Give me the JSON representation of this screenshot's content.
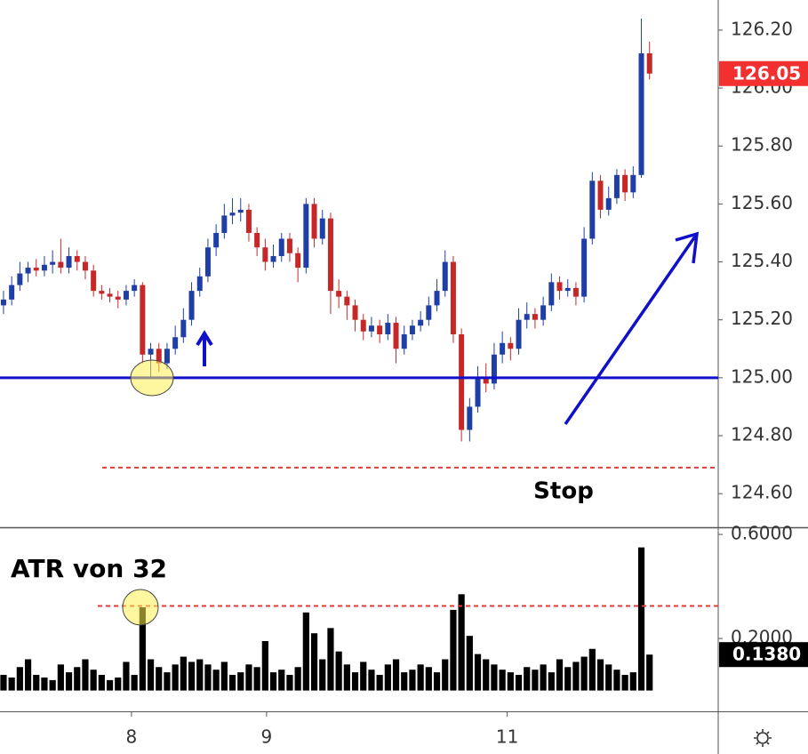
{
  "chart_data": [
    {
      "type": "candlestick",
      "up_color": "#1f3fa6",
      "down_color": "#c62828",
      "xlim": [
        -0.43,
        87.4
      ],
      "ylim": [
        124.487,
        126.304
      ],
      "yticks": [
        {
          "value": 124.6,
          "label": "124.60"
        },
        {
          "value": 124.8,
          "label": "124.80"
        },
        {
          "value": 125.0,
          "label": "125.00"
        },
        {
          "value": 125.2,
          "label": "125.20"
        },
        {
          "value": 125.4,
          "label": "125.40"
        },
        {
          "value": 125.6,
          "label": "125.60"
        },
        {
          "value": 125.8,
          "label": "125.80"
        },
        {
          "value": 126.0,
          "label": "126.00"
        },
        {
          "value": 126.2,
          "label": "126.20"
        }
      ],
      "ohlc": [
        [
          125.25,
          125.3,
          125.22,
          125.27
        ],
        [
          125.27,
          125.35,
          125.25,
          125.32
        ],
        [
          125.32,
          125.4,
          125.3,
          125.36
        ],
        [
          125.36,
          125.4,
          125.33,
          125.38
        ],
        [
          125.38,
          125.41,
          125.35,
          125.37
        ],
        [
          125.37,
          125.42,
          125.35,
          125.39
        ],
        [
          125.39,
          125.44,
          125.36,
          125.4
        ],
        [
          125.4,
          125.48,
          125.36,
          125.38
        ],
        [
          125.38,
          125.45,
          125.36,
          125.42
        ],
        [
          125.42,
          125.44,
          125.37,
          125.4
        ],
        [
          125.4,
          125.42,
          125.34,
          125.37
        ],
        [
          125.37,
          125.39,
          125.28,
          125.3
        ],
        [
          125.3,
          125.32,
          125.27,
          125.29
        ],
        [
          125.29,
          125.31,
          125.26,
          125.28
        ],
        [
          125.28,
          125.3,
          125.24,
          125.27
        ],
        [
          125.27,
          125.32,
          125.25,
          125.3
        ],
        [
          125.3,
          125.34,
          125.28,
          125.32
        ],
        [
          125.32,
          125.33,
          125.05,
          125.08
        ],
        [
          125.08,
          125.12,
          125.0,
          125.1
        ],
        [
          125.1,
          125.12,
          125.02,
          125.05
        ],
        [
          125.05,
          125.12,
          125.03,
          125.1
        ],
        [
          125.1,
          125.18,
          125.08,
          125.14
        ],
        [
          125.14,
          125.24,
          125.12,
          125.2
        ],
        [
          125.2,
          125.33,
          125.18,
          125.3
        ],
        [
          125.3,
          125.38,
          125.28,
          125.35
        ],
        [
          125.35,
          125.48,
          125.33,
          125.45
        ],
        [
          125.45,
          125.53,
          125.42,
          125.5
        ],
        [
          125.5,
          125.6,
          125.48,
          125.56
        ],
        [
          125.56,
          125.62,
          125.53,
          125.57
        ],
        [
          125.57,
          125.62,
          125.54,
          125.58
        ],
        [
          125.58,
          125.6,
          125.47,
          125.5
        ],
        [
          125.5,
          125.52,
          125.42,
          125.45
        ],
        [
          125.45,
          125.48,
          125.37,
          125.4
        ],
        [
          125.4,
          125.46,
          125.38,
          125.42
        ],
        [
          125.42,
          125.5,
          125.4,
          125.48
        ],
        [
          125.48,
          125.5,
          125.4,
          125.43
        ],
        [
          125.43,
          125.45,
          125.33,
          125.38
        ],
        [
          125.38,
          125.62,
          125.36,
          125.6
        ],
        [
          125.6,
          125.62,
          125.45,
          125.48
        ],
        [
          125.48,
          125.58,
          125.46,
          125.55
        ],
        [
          125.55,
          125.57,
          125.22,
          125.3
        ],
        [
          125.3,
          125.34,
          125.24,
          125.28
        ],
        [
          125.28,
          125.3,
          125.2,
          125.25
        ],
        [
          125.25,
          125.27,
          125.16,
          125.2
        ],
        [
          125.2,
          125.22,
          125.13,
          125.16
        ],
        [
          125.16,
          125.21,
          125.14,
          125.18
        ],
        [
          125.18,
          125.2,
          125.12,
          125.15
        ],
        [
          125.15,
          125.22,
          125.13,
          125.19
        ],
        [
          125.19,
          125.21,
          125.05,
          125.1
        ],
        [
          125.1,
          125.18,
          125.08,
          125.15
        ],
        [
          125.15,
          125.2,
          125.13,
          125.18
        ],
        [
          125.18,
          125.23,
          125.16,
          125.2
        ],
        [
          125.2,
          125.28,
          125.18,
          125.25
        ],
        [
          125.25,
          125.34,
          125.23,
          125.3
        ],
        [
          125.3,
          125.44,
          125.28,
          125.4
        ],
        [
          125.4,
          125.42,
          125.12,
          125.15
        ],
        [
          125.15,
          125.17,
          124.78,
          124.82
        ],
        [
          124.82,
          124.93,
          124.78,
          124.9
        ],
        [
          124.9,
          125.04,
          124.88,
          125.0
        ],
        [
          125.0,
          125.05,
          124.95,
          124.98
        ],
        [
          124.98,
          125.12,
          124.96,
          125.08
        ],
        [
          125.08,
          125.16,
          125.05,
          125.12
        ],
        [
          125.12,
          125.14,
          125.06,
          125.1
        ],
        [
          125.1,
          125.24,
          125.08,
          125.2
        ],
        [
          125.2,
          125.26,
          125.17,
          125.22
        ],
        [
          125.22,
          125.24,
          125.17,
          125.2
        ],
        [
          125.2,
          125.28,
          125.18,
          125.25
        ],
        [
          125.25,
          125.36,
          125.23,
          125.33
        ],
        [
          125.33,
          125.35,
          125.27,
          125.3
        ],
        [
          125.3,
          125.34,
          125.28,
          125.31
        ],
        [
          125.31,
          125.33,
          125.25,
          125.28
        ],
        [
          125.28,
          125.52,
          125.26,
          125.48
        ],
        [
          125.48,
          125.71,
          125.46,
          125.68
        ],
        [
          125.68,
          125.7,
          125.55,
          125.58
        ],
        [
          125.58,
          125.66,
          125.56,
          125.62
        ],
        [
          125.62,
          125.72,
          125.6,
          125.7
        ],
        [
          125.7,
          125.72,
          125.61,
          125.64
        ],
        [
          125.64,
          125.73,
          125.62,
          125.7
        ],
        [
          125.7,
          126.24,
          125.69,
          126.12
        ],
        [
          126.12,
          126.16,
          126.03,
          126.05
        ]
      ],
      "hlines": [
        {
          "value": 125.0,
          "color": "#1010c8",
          "dashed": false
        },
        {
          "value": 124.69,
          "color": "#e53935",
          "dashed": true
        }
      ],
      "last_tag": {
        "value": 126.05,
        "label": "126.05",
        "color": "#f23030"
      },
      "annotation": "Stop"
    },
    {
      "type": "bar",
      "color": "#000000",
      "xlim": [
        -0.43,
        87.4
      ],
      "ylim": [
        -0.08,
        0.624
      ],
      "yticks": [
        {
          "value": 0.2,
          "label": "0.2000"
        },
        {
          "value": 0.6,
          "label": "0.6000"
        }
      ],
      "xticks": [
        {
          "value": 15.65,
          "label": "8"
        },
        {
          "value": 32.17,
          "label": "9"
        },
        {
          "value": 61.6,
          "label": "11"
        }
      ],
      "values": [
        0.06,
        0.05,
        0.09,
        0.12,
        0.06,
        0.05,
        0.04,
        0.1,
        0.07,
        0.09,
        0.12,
        0.08,
        0.06,
        0.04,
        0.05,
        0.11,
        0.06,
        0.32,
        0.12,
        0.09,
        0.07,
        0.1,
        0.13,
        0.11,
        0.12,
        0.1,
        0.08,
        0.11,
        0.06,
        0.07,
        0.1,
        0.09,
        0.19,
        0.07,
        0.08,
        0.06,
        0.09,
        0.3,
        0.22,
        0.12,
        0.24,
        0.15,
        0.1,
        0.07,
        0.11,
        0.08,
        0.06,
        0.1,
        0.12,
        0.07,
        0.08,
        0.1,
        0.09,
        0.07,
        0.12,
        0.31,
        0.37,
        0.21,
        0.14,
        0.12,
        0.1,
        0.08,
        0.07,
        0.06,
        0.09,
        0.08,
        0.1,
        0.07,
        0.12,
        0.09,
        0.11,
        0.13,
        0.16,
        0.12,
        0.1,
        0.08,
        0.06,
        0.07,
        0.55,
        0.138
      ],
      "hlines": [
        {
          "value": 0.325,
          "color": "#e53935",
          "dashed": true
        }
      ],
      "last_tag": {
        "value": 0.138,
        "label": "0.1380",
        "color": "#000000"
      },
      "annotation": "ATR von 32"
    }
  ]
}
